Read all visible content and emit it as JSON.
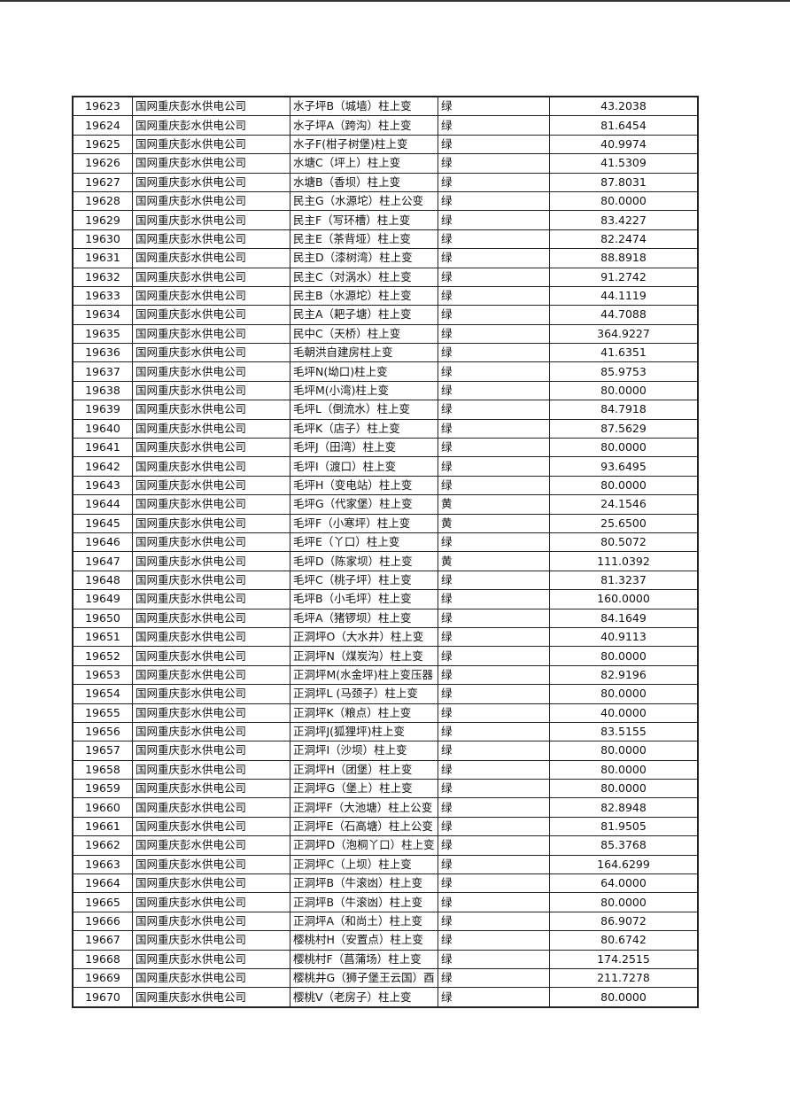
{
  "company": "国网重庆彭水供电公司",
  "rows": [
    [
      "19623",
      "水子坪B（城墙）柱上变",
      "绿",
      "43.2038"
    ],
    [
      "19624",
      "水子坪A（跨沟）柱上变",
      "绿",
      "81.6454"
    ],
    [
      "19625",
      "水子F(柑子树堡)柱上变",
      "绿",
      "40.9974"
    ],
    [
      "19626",
      "水塘C（坪上）柱上变",
      "绿",
      "41.5309"
    ],
    [
      "19627",
      "水塘B（香坝）柱上变",
      "绿",
      "87.8031"
    ],
    [
      "19628",
      "民主G（水源坨）柱上公变",
      "绿",
      "80.0000"
    ],
    [
      "19629",
      "民主F（写环槽）柱上变",
      "绿",
      "83.4227"
    ],
    [
      "19630",
      "民主E（茶背垭）柱上变",
      "绿",
      "82.2474"
    ],
    [
      "19631",
      "民主D（漆树湾）柱上变",
      "绿",
      "88.8918"
    ],
    [
      "19632",
      "民主C（对涡水）柱上变",
      "绿",
      "91.2742"
    ],
    [
      "19633",
      "民主B（水源坨）柱上变",
      "绿",
      "44.1119"
    ],
    [
      "19634",
      "民主A（耙子塘）柱上变",
      "绿",
      "44.7088"
    ],
    [
      "19635",
      "民中C（天桥）柱上变",
      "绿",
      "364.9227"
    ],
    [
      "19636",
      "毛朝洪自建房柱上变",
      "绿",
      "41.6351"
    ],
    [
      "19637",
      "毛坪N(坳口)柱上变",
      "绿",
      "85.9753"
    ],
    [
      "19638",
      "毛坪M(小湾)柱上变",
      "绿",
      "80.0000"
    ],
    [
      "19639",
      "毛坪L（倒流水）柱上变",
      "绿",
      "84.7918"
    ],
    [
      "19640",
      "毛坪K（店子）柱上变",
      "绿",
      "87.5629"
    ],
    [
      "19641",
      "毛坪J（田湾）柱上变",
      "绿",
      "80.0000"
    ],
    [
      "19642",
      "毛坪I（渡口）柱上变",
      "绿",
      "93.6495"
    ],
    [
      "19643",
      "毛坪H（变电站）柱上变",
      "绿",
      "80.0000"
    ],
    [
      "19644",
      "毛坪G（代家堡）柱上变",
      "黄",
      "24.1546"
    ],
    [
      "19645",
      "毛坪F（小寒坪）柱上变",
      "黄",
      "25.6500"
    ],
    [
      "19646",
      "毛坪E（丫口）柱上变",
      "绿",
      "80.5072"
    ],
    [
      "19647",
      "毛坪D（陈家坝）柱上变",
      "黄",
      "111.0392"
    ],
    [
      "19648",
      "毛坪C（桃子坪）柱上变",
      "绿",
      "81.3237"
    ],
    [
      "19649",
      "毛坪B（小毛坪）柱上变",
      "绿",
      "160.0000"
    ],
    [
      "19650",
      "毛坪A（猪锣坝）柱上变",
      "绿",
      "84.1649"
    ],
    [
      "19651",
      "正洞坪O（大水井）柱上变",
      "绿",
      "40.9113"
    ],
    [
      "19652",
      "正洞坪N（煤炭沟）柱上变",
      "绿",
      "80.0000"
    ],
    [
      "19653",
      "正洞坪M(水金坪)柱上变压器",
      "绿",
      "82.9196"
    ],
    [
      "19654",
      "正洞坪L (马颈子）柱上变",
      "绿",
      "80.0000"
    ],
    [
      "19655",
      "正洞坪K（粮点）柱上变",
      "绿",
      "40.0000"
    ],
    [
      "19656",
      "正洞坪J(狐狸坪)柱上变",
      "绿",
      "83.5155"
    ],
    [
      "19657",
      "正洞坪I（沙坝）柱上变",
      "绿",
      "80.0000"
    ],
    [
      "19658",
      "正洞坪H（团堡）柱上变",
      "绿",
      "80.0000"
    ],
    [
      "19659",
      "正洞坪G（堡上）柱上变",
      "绿",
      "80.0000"
    ],
    [
      "19660",
      "正洞坪F（大池塘）柱上公变",
      "绿",
      "82.8948"
    ],
    [
      "19661",
      "正洞坪E（石高塘）柱上公变",
      "绿",
      "81.9505"
    ],
    [
      "19662",
      "正洞坪D（泡桐丫口）柱上变",
      "绿",
      "85.3768"
    ],
    [
      "19663",
      "正洞坪C（上坝）柱上变",
      "绿",
      "164.6299"
    ],
    [
      "19664",
      "正洞坪B（牛滚凼）柱上变",
      "绿",
      "64.0000"
    ],
    [
      "19665",
      "正洞坪B（牛滚凼）柱上变",
      "绿",
      "80.0000"
    ],
    [
      "19666",
      "正洞坪A（和尚土）柱上变",
      "绿",
      "86.9072"
    ],
    [
      "19667",
      "樱桃村H（安置点）柱上变",
      "绿",
      "80.6742"
    ],
    [
      "19668",
      "樱桃村F（菖蒲场）柱上变",
      "绿",
      "174.2515"
    ],
    [
      "19669",
      "樱桃井G（狮子堡王云国）酉",
      "绿",
      "211.7278"
    ],
    [
      "19670",
      "樱桃V（老房子）柱上变",
      "绿",
      "80.0000"
    ]
  ]
}
